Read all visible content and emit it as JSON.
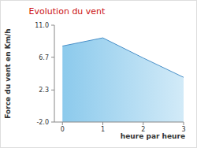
{
  "chart_data": {
    "type": "area",
    "title": "Evolution du vent",
    "x_label": "heure par heure",
    "y_label": "Force du vent en Km/h",
    "x": [
      0,
      1,
      2,
      3
    ],
    "values": [
      8.2,
      9.3,
      6.6,
      4.0
    ],
    "color": "#7fc4ea",
    "xlim": [
      -0.2,
      3.0
    ],
    "xticks": [
      0,
      1,
      2,
      3
    ],
    "ylim": [
      -2.0,
      11.0
    ],
    "yticks": [
      {
        "value": -2.0,
        "label": "-2.0"
      },
      {
        "value": 2.3,
        "label": "2.3"
      },
      {
        "value": 6.7,
        "label": "6.7"
      },
      {
        "value": 11.0,
        "label": "11.0"
      }
    ],
    "grid": false
  }
}
